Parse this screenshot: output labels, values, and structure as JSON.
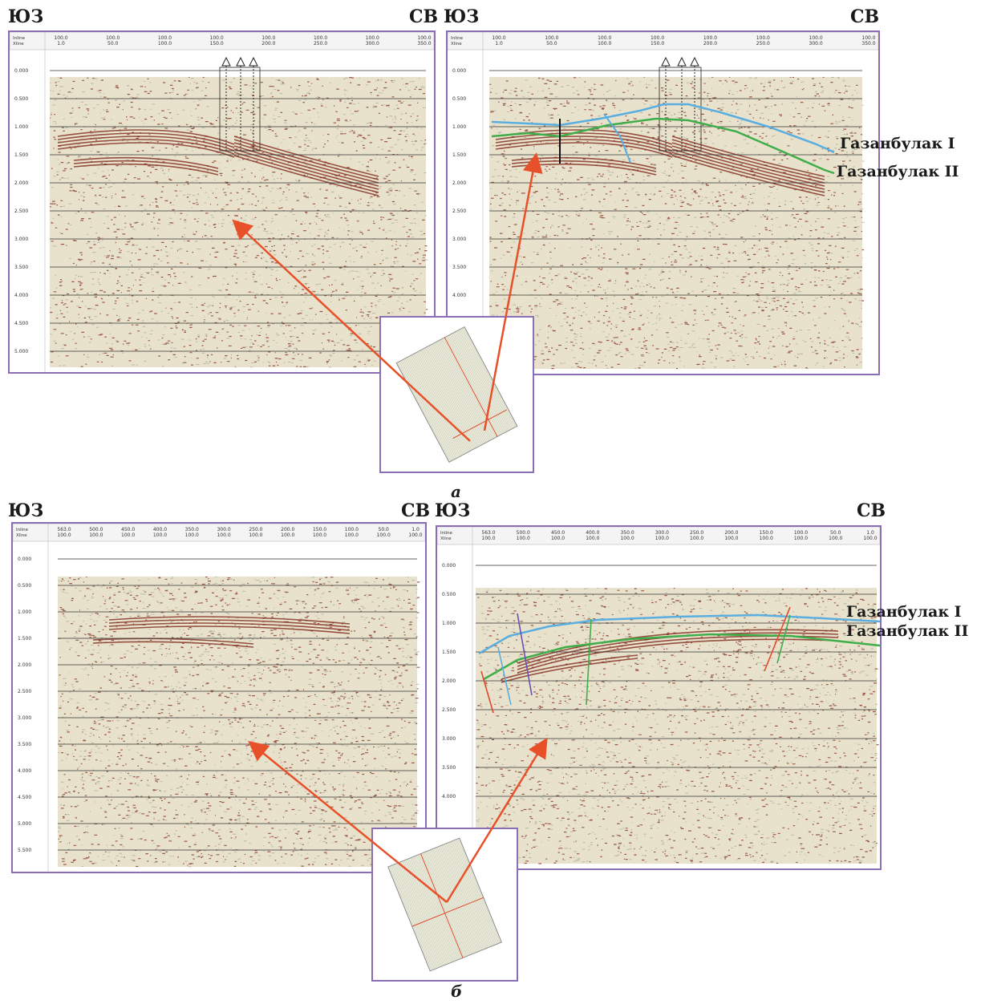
{
  "direction": {
    "sw": "ЮЗ",
    "ne": "СВ"
  },
  "horizons": {
    "upper": "Газанбулак I",
    "lower": "Газанбулак II"
  },
  "captions": {
    "a": "а",
    "b": "б"
  },
  "header_labels": [
    "Inline",
    "Xline"
  ],
  "panels": {
    "a_left": {
      "header_top": [
        "100.0",
        "100.0",
        "100.0",
        "100.0",
        "100.0",
        "100.0",
        "100.0",
        "100.0"
      ],
      "header_bottom": [
        "1.0",
        "50.0",
        "100.0",
        "150.0",
        "200.0",
        "250.0",
        "300.0",
        "350.0"
      ],
      "times": [
        "0.000",
        "0.500",
        "1.000",
        "1.500",
        "2.000",
        "2.500",
        "3.000",
        "3.500",
        "4.000",
        "4.500",
        "5.000"
      ]
    },
    "a_right": {
      "header_top": [
        "100.0",
        "100.0",
        "100.0",
        "100.0",
        "100.0",
        "100.0",
        "100.0",
        "100.0"
      ],
      "header_bottom": [
        "1.0",
        "50.0",
        "100.0",
        "150.0",
        "200.0",
        "250.0",
        "300.0",
        "350.0"
      ],
      "times": [
        "0.000",
        "0.500",
        "1.000",
        "1.500",
        "2.000",
        "2.500",
        "3.000",
        "3.500",
        "4.000"
      ]
    },
    "b_left": {
      "header_top": [
        "563.0",
        "500.0",
        "450.0",
        "400.0",
        "350.0",
        "300.0",
        "250.0",
        "200.0",
        "150.0",
        "100.0",
        "50.0",
        "1.0"
      ],
      "header_bottom": [
        "100.0",
        "100.0",
        "100.0",
        "100.0",
        "100.0",
        "100.0",
        "100.0",
        "100.0",
        "100.0",
        "100.0",
        "100.0",
        "100.0"
      ],
      "times": [
        "0.000",
        "0.500",
        "1.000",
        "1.500",
        "2.000",
        "2.500",
        "3.000",
        "3.500",
        "4.000",
        "4.500",
        "5.000",
        "5.500",
        "6.000"
      ]
    },
    "b_right": {
      "header_top": [
        "563.0",
        "500.0",
        "450.0",
        "400.0",
        "350.0",
        "300.0",
        "250.0",
        "200.0",
        "150.0",
        "100.0",
        "50.0",
        "1.0"
      ],
      "header_bottom": [
        "100.0",
        "100.0",
        "100.0",
        "100.0",
        "100.0",
        "100.0",
        "100.0",
        "100.0",
        "100.0",
        "100.0",
        "100.0",
        "100.0"
      ],
      "times": [
        "0.000",
        "0.500",
        "1.000",
        "1.500",
        "2.000",
        "2.500",
        "3.000",
        "3.500",
        "4.000"
      ]
    }
  },
  "colors": {
    "frame": "#8a6fb8",
    "arrow": "#e8502a",
    "horizon_upper": "#5aaee0",
    "horizon_lower": "#3fae4a",
    "fault_red": "#e04a2a",
    "fault_purple": "#6a4fb0",
    "seismic_pos": "#7a1e12",
    "seismic_bg": "#e8e2cc"
  }
}
